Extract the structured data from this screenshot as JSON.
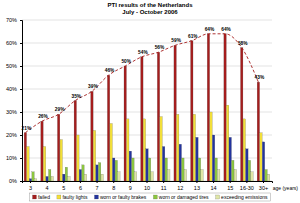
{
  "chart_data": {
    "type": "bar",
    "title": "PTI results of the Netherlands",
    "subtitle": "July - October 2006",
    "x_label": "age (years)",
    "categories": [
      "3",
      "4",
      "5",
      "6",
      "7",
      "8",
      "9",
      "10",
      "11",
      "12",
      "13",
      "14",
      "15",
      "16-30",
      "30+"
    ],
    "series": [
      {
        "name": "failed",
        "color": "#a51d1d",
        "line_style": "dashed",
        "values": [
          21,
          26,
          29,
          35,
          39,
          46,
          50,
          54,
          56,
          59,
          61,
          64,
          64,
          58,
          43
        ],
        "value_labels": [
          "21%",
          "26%",
          "29%",
          "35%",
          "39%",
          "46%",
          "50%",
          "54%",
          "56%",
          "59%",
          "61%",
          "64%",
          "64%",
          "58%",
          "43%"
        ]
      },
      {
        "name": "faulty lights",
        "color": "#f2df3a",
        "values": [
          15,
          15,
          18,
          20,
          22,
          25,
          27,
          27,
          28,
          29,
          29,
          30,
          33,
          27,
          21
        ]
      },
      {
        "name": "worn or faulty brakes",
        "color": "#23349e",
        "values": [
          1,
          2,
          3,
          5,
          7,
          10,
          13,
          14,
          15,
          16,
          19,
          20,
          19,
          14,
          17
        ]
      },
      {
        "name": "worn or damaged tires",
        "color": "#8cc63f",
        "values": [
          4,
          5,
          6,
          7,
          8,
          9,
          10,
          10,
          10,
          10,
          10,
          10,
          9,
          9,
          5
        ]
      },
      {
        "name": "exceeding emissions",
        "color": "#dfe6a6",
        "values": [
          1,
          2,
          2,
          3,
          3,
          4,
          4,
          4,
          5,
          5,
          5,
          5,
          5,
          4,
          3
        ]
      }
    ],
    "ylim": [
      0,
      70
    ],
    "yticks": [
      {
        "value": 0,
        "label": "0%"
      },
      {
        "value": 10,
        "label": "10%"
      },
      {
        "value": 20,
        "label": "20%"
      },
      {
        "value": 30,
        "label": "30%"
      },
      {
        "value": 40,
        "label": "40%"
      },
      {
        "value": 50,
        "label": "50%"
      },
      {
        "value": 60,
        "label": "60%"
      },
      {
        "value": 70,
        "label": "70%"
      }
    ],
    "grid": true,
    "data_labels": true,
    "legend": "bottom"
  }
}
